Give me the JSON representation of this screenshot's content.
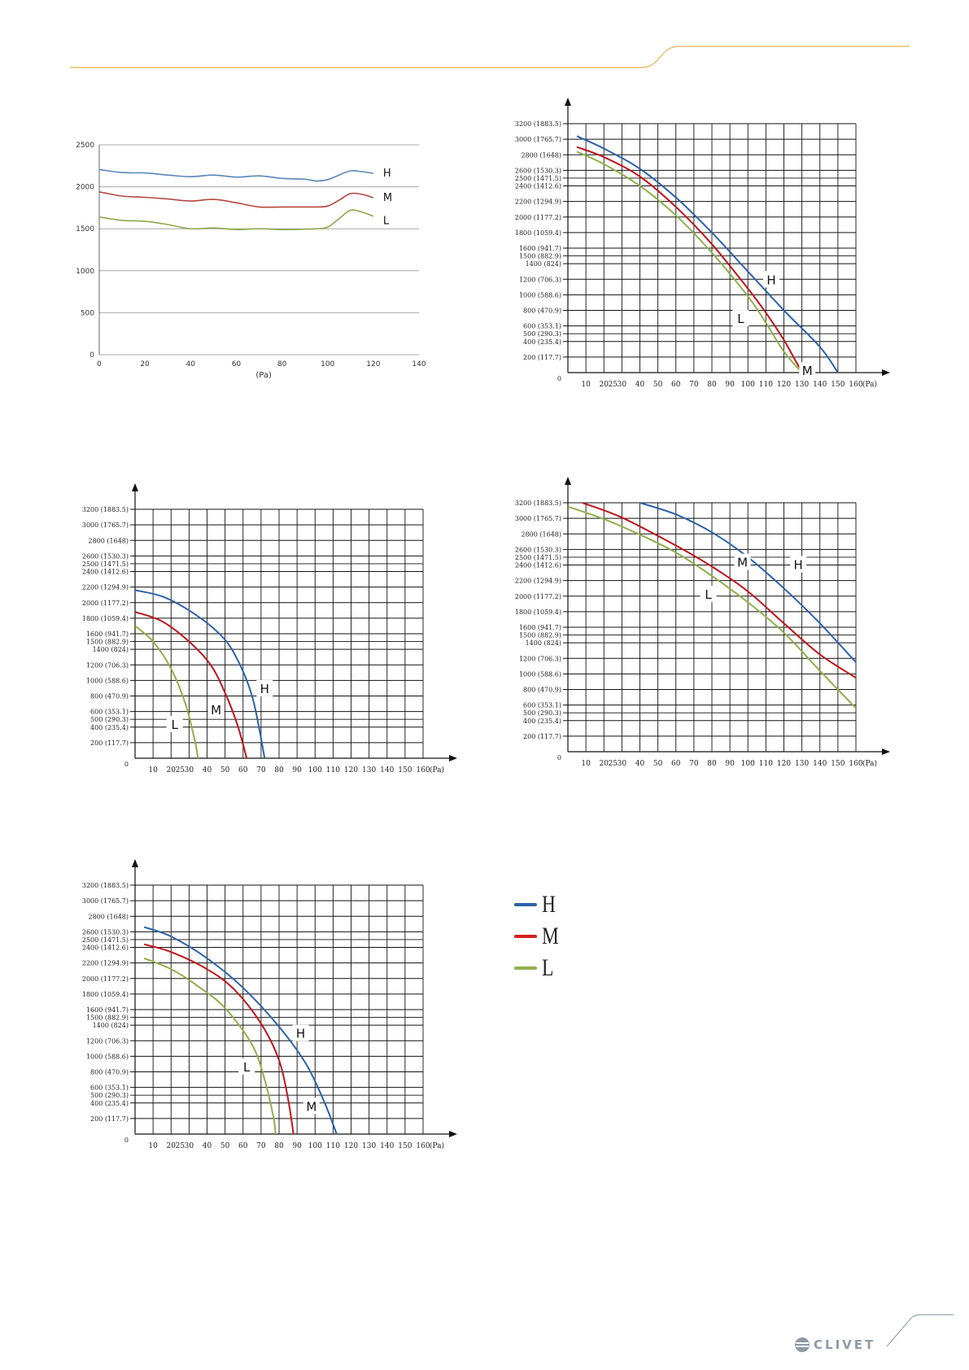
{
  "colors": {
    "H": "#2c62a9",
    "M": "#c0141b",
    "L": "#8fb04a",
    "gold": "#e8c16a",
    "grey": "#9aa4ad"
  },
  "legend": {
    "items": [
      {
        "label": "H",
        "color": "#2c62a9"
      },
      {
        "label": "M",
        "color": "#d42020"
      },
      {
        "label": "L",
        "color": "#8fb04a"
      }
    ]
  },
  "brand": {
    "logo_text": "CLIVET"
  },
  "chart_data": [
    {
      "type": "line",
      "xlabel": "(Pa)",
      "ylabel": "",
      "xlim": [
        0,
        140
      ],
      "ylim": [
        0,
        2500
      ],
      "xticks": [
        0,
        20,
        40,
        60,
        80,
        100,
        120,
        140
      ],
      "yticks": [
        0,
        500,
        1000,
        1500,
        2000,
        2500
      ],
      "grid": "horizontal",
      "series": [
        {
          "name": "H",
          "color": "#5b86b8",
          "x": [
            0,
            10,
            20,
            30,
            40,
            50,
            60,
            70,
            80,
            90,
            95,
            100,
            105,
            110,
            115,
            120
          ],
          "y": [
            2205,
            2170,
            2165,
            2140,
            2120,
            2140,
            2115,
            2130,
            2100,
            2090,
            2070,
            2085,
            2140,
            2190,
            2180,
            2160
          ]
        },
        {
          "name": "M",
          "color": "#b5473f",
          "x": [
            0,
            10,
            20,
            30,
            40,
            50,
            60,
            70,
            80,
            90,
            95,
            100,
            105,
            110,
            115,
            120
          ],
          "y": [
            1940,
            1890,
            1875,
            1855,
            1830,
            1850,
            1810,
            1760,
            1760,
            1760,
            1760,
            1770,
            1840,
            1920,
            1910,
            1870
          ]
        },
        {
          "name": "L",
          "color": "#8fa84e",
          "x": [
            0,
            10,
            20,
            30,
            40,
            50,
            60,
            70,
            80,
            90,
            95,
            100,
            105,
            110,
            115,
            120
          ],
          "y": [
            1640,
            1600,
            1590,
            1550,
            1500,
            1510,
            1490,
            1500,
            1490,
            1495,
            1500,
            1520,
            1620,
            1720,
            1700,
            1650
          ]
        }
      ]
    },
    {
      "type": "line",
      "xlabel": "(Pa)",
      "ylabel": "",
      "xlim": [
        0,
        160
      ],
      "ylim": [
        0,
        3200
      ],
      "xticks": [
        10,
        20,
        25,
        30,
        40,
        50,
        60,
        70,
        80,
        90,
        100,
        110,
        120,
        130,
        140,
        150,
        160
      ],
      "yticks": [
        200,
        400,
        500,
        600,
        800,
        1000,
        1200,
        1400,
        1500,
        1600,
        1800,
        2000,
        2200,
        2400,
        2500,
        2600,
        2800,
        3000,
        3200
      ],
      "ytick_labels": [
        "200 (117.7)",
        "400 (235.4)",
        "500 (290.3)",
        "600 (353.1)",
        "800 (470.9)",
        "1000 (588.6)",
        "1200 (706.3)",
        "1400 (824)",
        "1500 (882.9)",
        "1600 (941.7)",
        "1800 (1059.4)",
        "2000 (1177.2)",
        "2200 (1294.9)",
        "2400 (1412.6)",
        "2500 (1471.5)",
        "2600 (1530.3)",
        "2800 (1648)",
        "3000 (1765.7)",
        "3200 (1883.5)"
      ],
      "origin_label": "0",
      "grid": true,
      "series": [
        {
          "name": "H",
          "x": [
            5,
            20,
            40,
            60,
            80,
            100,
            120,
            140,
            150
          ],
          "y": [
            3040,
            2880,
            2620,
            2250,
            1800,
            1300,
            800,
            330,
            0
          ]
        },
        {
          "name": "M",
          "x": [
            5,
            20,
            40,
            60,
            80,
            100,
            110,
            120,
            130,
            135
          ],
          "y": [
            2900,
            2770,
            2520,
            2130,
            1650,
            1080,
            770,
            420,
            20,
            0
          ]
        },
        {
          "name": "L",
          "x": [
            5,
            20,
            40,
            60,
            80,
            100,
            110,
            120,
            130
          ],
          "y": [
            2840,
            2680,
            2400,
            2020,
            1540,
            980,
            640,
            270,
            0
          ]
        }
      ],
      "annotations": [
        {
          "text": "H",
          "x": 113,
          "y": 1200
        },
        {
          "text": "M",
          "x": 133,
          "y": 30
        },
        {
          "text": "L",
          "x": 96,
          "y": 700
        }
      ]
    },
    {
      "type": "line",
      "xlabel": "(Pa)",
      "ylabel": "",
      "xlim": [
        0,
        160
      ],
      "ylim": [
        0,
        3200
      ],
      "xticks": [
        10,
        20,
        25,
        30,
        40,
        50,
        60,
        70,
        80,
        90,
        100,
        110,
        120,
        130,
        140,
        150,
        160
      ],
      "yticks": [
        200,
        400,
        500,
        600,
        800,
        1000,
        1200,
        1400,
        1500,
        1600,
        1800,
        2000,
        2200,
        2400,
        2500,
        2600,
        2800,
        3000,
        3200
      ],
      "ytick_labels": [
        "200 (117.7)",
        "400 (235.4)",
        "500 (290.3)",
        "600 (353.1)",
        "800 (470.9)",
        "1000 (588.6)",
        "1200 (706.3)",
        "1400 (824)",
        "1500 (882.9)",
        "1600 (941.7)",
        "1800 (1059.4)",
        "2000 (1177.2)",
        "2200 (1294.9)",
        "2400 (1412.6)",
        "2500 (1471.5)",
        "2600 (1530.3)",
        "2800 (1648)",
        "3000 (1765.7)",
        "3200 (1883.5)"
      ],
      "origin_label": "0",
      "grid": true,
      "series": [
        {
          "name": "H",
          "x": [
            0,
            15,
            30,
            45,
            55,
            65,
            72
          ],
          "y": [
            2160,
            2080,
            1900,
            1640,
            1350,
            800,
            0
          ]
        },
        {
          "name": "M",
          "x": [
            0,
            15,
            30,
            42,
            50,
            57,
            62
          ],
          "y": [
            1880,
            1760,
            1500,
            1200,
            840,
            420,
            0
          ]
        },
        {
          "name": "L",
          "x": [
            0,
            10,
            20,
            28,
            33,
            35
          ],
          "y": [
            1700,
            1500,
            1150,
            700,
            250,
            0
          ]
        }
      ],
      "annotations": [
        {
          "text": "H",
          "x": 72,
          "y": 900
        },
        {
          "text": "M",
          "x": 45,
          "y": 630
        },
        {
          "text": "L",
          "x": 22,
          "y": 440
        }
      ]
    },
    {
      "type": "line",
      "xlabel": "(Pa)",
      "ylabel": "",
      "xlim": [
        0,
        160
      ],
      "ylim": [
        0,
        3200
      ],
      "xticks": [
        10,
        20,
        25,
        30,
        40,
        50,
        60,
        70,
        80,
        90,
        100,
        110,
        120,
        130,
        140,
        150,
        160
      ],
      "yticks": [
        200,
        400,
        500,
        600,
        800,
        1000,
        1200,
        1400,
        1500,
        1600,
        1800,
        2000,
        2200,
        2400,
        2500,
        2600,
        2800,
        3000,
        3200
      ],
      "ytick_labels": [
        "200 (117.7)",
        "400 (235.4)",
        "500 (290.3)",
        "600 (353.1)",
        "800 (470.9)",
        "1000 (588.6)",
        "1200 (706.3)",
        "1400 (824)",
        "1500 (882.9)",
        "1600 (941.7)",
        "1800 (1059.4)",
        "2000 (1177.2)",
        "2200 (1294.9)",
        "2400 (1412.6)",
        "2500 (1471.5)",
        "2600 (1530.3)",
        "2800 (1648)",
        "3000 (1765.7)",
        "3200 (1883.5)"
      ],
      "origin_label": "0",
      "grid": true,
      "series": [
        {
          "name": "H",
          "x": [
            40,
            60,
            80,
            100,
            120,
            140,
            160
          ],
          "y": [
            3200,
            3050,
            2820,
            2500,
            2100,
            1650,
            1150
          ]
        },
        {
          "name": "M",
          "x": [
            8,
            30,
            60,
            80,
            100,
            120,
            140,
            160
          ],
          "y": [
            3200,
            3010,
            2650,
            2380,
            2060,
            1650,
            1250,
            950
          ]
        },
        {
          "name": "L",
          "x": [
            0,
            20,
            40,
            60,
            80,
            100,
            120,
            140,
            160
          ],
          "y": [
            3150,
            2990,
            2790,
            2560,
            2260,
            1920,
            1530,
            1040,
            560
          ]
        }
      ],
      "annotations": [
        {
          "text": "H",
          "x": 128,
          "y": 2410
        },
        {
          "text": "M",
          "x": 97,
          "y": 2440
        },
        {
          "text": "L",
          "x": 78,
          "y": 2030
        }
      ]
    },
    {
      "type": "line",
      "xlabel": "(Pa)",
      "ylabel": "",
      "xlim": [
        0,
        160
      ],
      "ylim": [
        0,
        3200
      ],
      "xticks": [
        10,
        20,
        25,
        30,
        40,
        50,
        60,
        70,
        80,
        90,
        100,
        110,
        120,
        130,
        140,
        150,
        160
      ],
      "yticks": [
        200,
        400,
        500,
        600,
        800,
        1000,
        1200,
        1400,
        1500,
        1600,
        1800,
        2000,
        2200,
        2400,
        2500,
        2600,
        2800,
        3000,
        3200
      ],
      "ytick_labels": [
        "200 (117.7)",
        "400 (235.4)",
        "500 (290.3)",
        "600 (353.1)",
        "800 (470.9)",
        "1000 (588.6)",
        "1200 (706.3)",
        "1400 (824)",
        "1500 (882.9)",
        "1600 (941.7)",
        "1800 (1059.4)",
        "2000 (1177.2)",
        "2200 (1294.9)",
        "2400 (1412.6)",
        "2500 (1471.5)",
        "2600 (1530.3)",
        "2800 (1648)",
        "3000 (1765.7)",
        "3200 (1883.5)"
      ],
      "origin_label": "0",
      "grid": true,
      "series": [
        {
          "name": "H",
          "x": [
            5,
            20,
            40,
            60,
            80,
            95,
            105,
            112
          ],
          "y": [
            2660,
            2540,
            2260,
            1880,
            1380,
            900,
            420,
            0
          ]
        },
        {
          "name": "M",
          "x": [
            5,
            20,
            40,
            55,
            70,
            80,
            85,
            88
          ],
          "y": [
            2440,
            2340,
            2120,
            1860,
            1420,
            950,
            450,
            0
          ]
        },
        {
          "name": "L",
          "x": [
            5,
            20,
            35,
            50,
            65,
            72,
            77,
            78
          ],
          "y": [
            2260,
            2120,
            1900,
            1620,
            1150,
            700,
            200,
            0
          ]
        }
      ],
      "annotations": [
        {
          "text": "H",
          "x": 92,
          "y": 1300
        },
        {
          "text": "M",
          "x": 98,
          "y": 360
        },
        {
          "text": "L",
          "x": 62,
          "y": 870
        }
      ]
    }
  ]
}
